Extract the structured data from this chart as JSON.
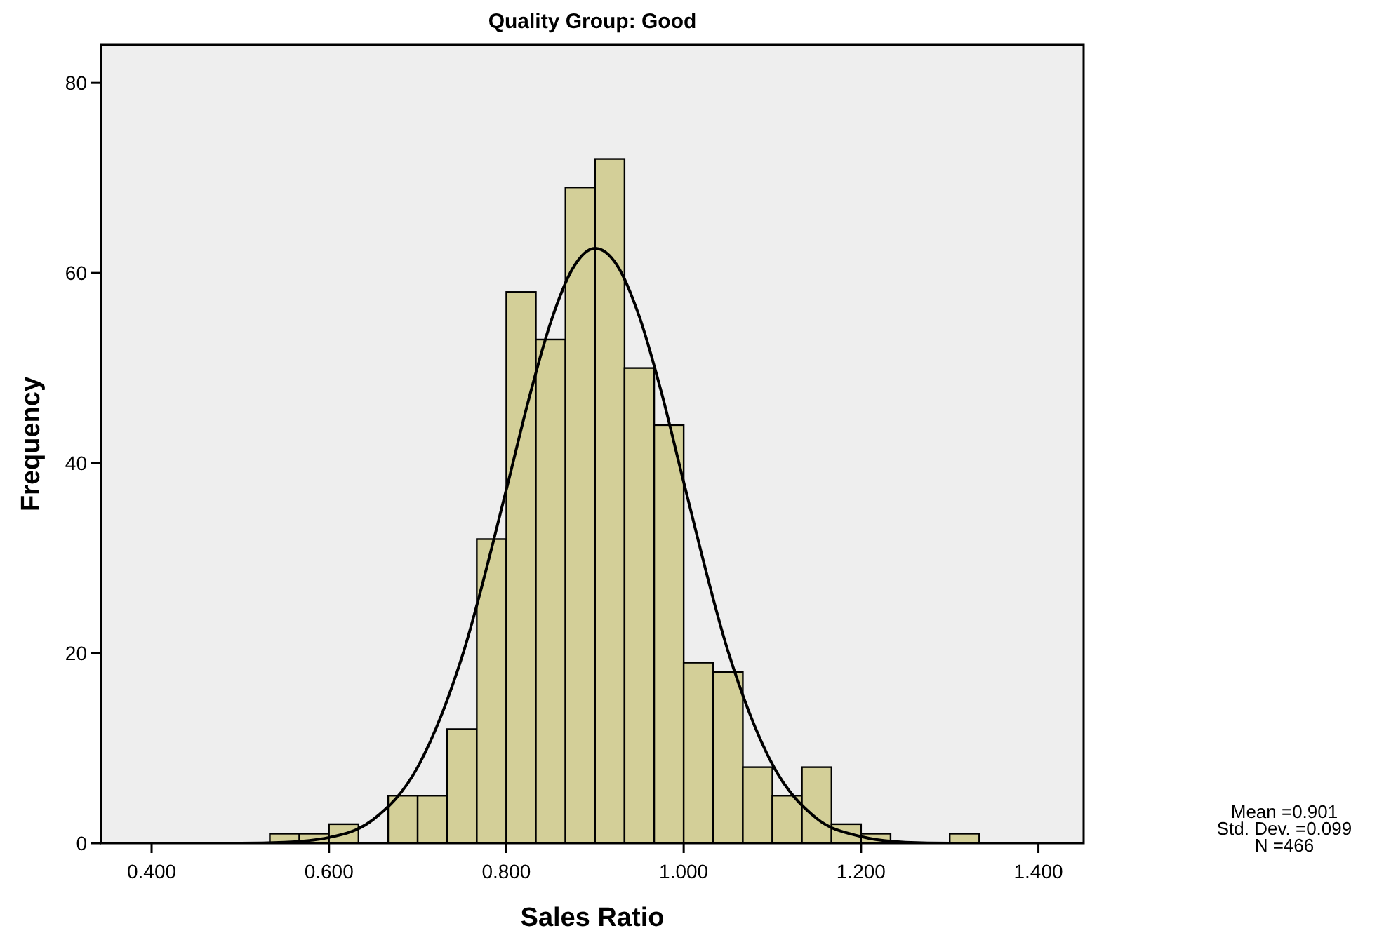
{
  "chart_data": {
    "type": "histogram",
    "title": "Quality Group: Good",
    "xlabel": "Sales Ratio",
    "ylabel": "Frequency",
    "bins": [
      0.5333,
      0.5667,
      0.6,
      0.6333,
      0.6667,
      0.7,
      0.7333,
      0.7667,
      0.8,
      0.8333,
      0.8667,
      0.9,
      0.9333,
      0.9667,
      1.0,
      1.0333,
      1.0667,
      1.1,
      1.1333,
      1.1667,
      1.2,
      1.2333,
      1.2667,
      1.3,
      1.3333
    ],
    "series": [
      {
        "color": "#d3cf98",
        "values": [
          1,
          1,
          2,
          0,
          5,
          5,
          12,
          32,
          58,
          53,
          69,
          72,
          50,
          44,
          19,
          18,
          8,
          5,
          8,
          2,
          1,
          0,
          0,
          1
        ]
      },
      {
        "type": "line",
        "color": "#000000",
        "x": [
          0.45,
          0.5,
          0.55,
          0.6,
          0.65,
          0.7,
          0.75,
          0.8,
          0.825,
          0.85,
          0.875,
          0.9,
          0.925,
          0.95,
          0.975,
          1.0,
          1.05,
          1.1,
          1.15,
          1.2,
          1.25,
          1.3,
          1.35
        ],
        "values": [
          0,
          0,
          0.1,
          0.6,
          2.5,
          8,
          19.6,
          37.2,
          46.6,
          54.8,
          60.5,
          62.6,
          60.8,
          55.4,
          47.4,
          38,
          20.2,
          8.3,
          2.6,
          0.7,
          0.1,
          0,
          0
        ]
      }
    ],
    "xlim": [
      0.343,
      1.451
    ],
    "ylim": [
      0,
      84
    ],
    "xticks": [
      {
        "value": 0.4,
        "label": "0.400"
      },
      {
        "value": 0.6,
        "label": "0.600"
      },
      {
        "value": 0.8,
        "label": "0.800"
      },
      {
        "value": 1.0,
        "label": "1.000"
      },
      {
        "value": 1.2,
        "label": "1.200"
      },
      {
        "value": 1.4,
        "label": "1.400"
      }
    ],
    "yticks": [
      0,
      20,
      40,
      60,
      80
    ],
    "grid": false,
    "annotations": [
      "Mean =0.901",
      "Std. Dev. =0.099",
      "N =466"
    ]
  }
}
